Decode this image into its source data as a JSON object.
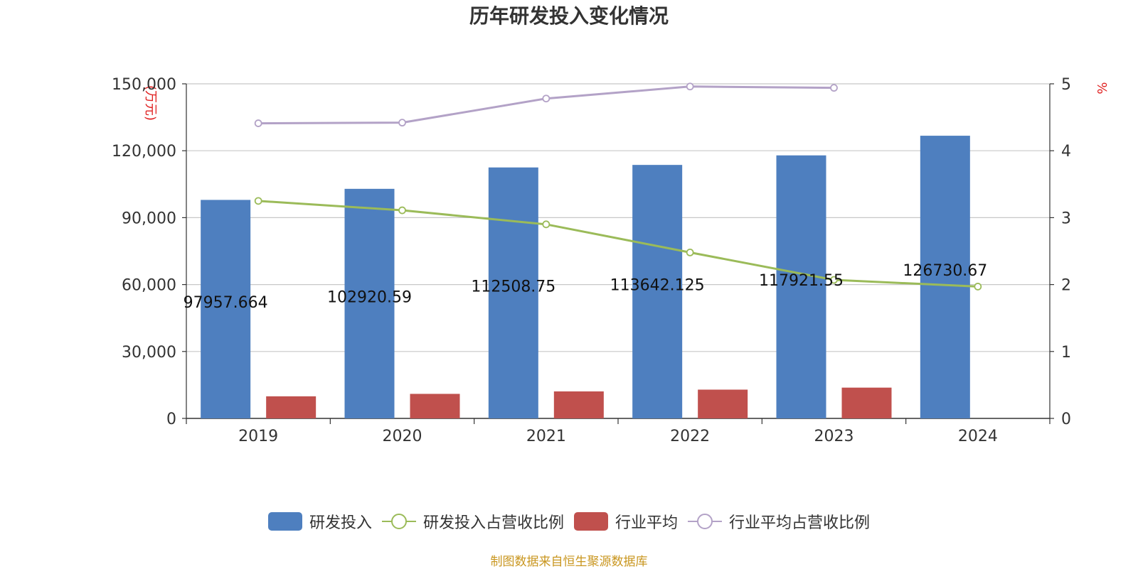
{
  "chart_data": {
    "type": "bar",
    "title": "历年研发投入变化情况",
    "categories": [
      "2019",
      "2020",
      "2021",
      "2022",
      "2023",
      "2024"
    ],
    "y_left": {
      "unit": "(万元)",
      "min": 0,
      "max": 150000,
      "ticks": [
        "0",
        "30,000",
        "60,000",
        "90,000",
        "120,000",
        "150,000"
      ]
    },
    "y_right": {
      "unit": "%",
      "min": 0,
      "max": 5,
      "ticks": [
        "0",
        "1",
        "2",
        "3",
        "4",
        "5"
      ]
    },
    "grid": true,
    "legend_position": "bottom",
    "series": [
      {
        "name": "研发投入",
        "kind": "bar",
        "axis": "left",
        "color": "#4e7fbf",
        "values": [
          97957.664,
          102920.59,
          112508.75,
          113642.125,
          117921.55,
          126730.67
        ],
        "labels": [
          "97957.664",
          "102920.59",
          "112508.75",
          "113642.125",
          "117921.55",
          "126730.67"
        ]
      },
      {
        "name": "研发投入占营收比例",
        "kind": "line",
        "axis": "right",
        "color": "#9bbb59",
        "values": [
          3.25,
          3.11,
          2.9,
          2.48,
          2.07,
          1.97
        ]
      },
      {
        "name": "行业平均",
        "kind": "bar",
        "axis": "left",
        "color": "#c0504d",
        "values": [
          9900,
          11000,
          12100,
          12900,
          13800,
          null
        ]
      },
      {
        "name": "行业平均占营收比例",
        "kind": "line",
        "axis": "right",
        "color": "#b3a2c7",
        "values": [
          4.41,
          4.42,
          4.78,
          4.96,
          4.94,
          null
        ]
      }
    ]
  },
  "legend": {
    "items": [
      {
        "label": "研发投入",
        "style": "swatch",
        "color": "#4e7fbf"
      },
      {
        "label": "研发投入占营收比例",
        "style": "line",
        "color": "#9bbb59"
      },
      {
        "label": "行业平均",
        "style": "swatch",
        "color": "#c0504d"
      },
      {
        "label": "行业平均占营收比例",
        "style": "line",
        "color": "#b3a2c7"
      }
    ]
  },
  "footer": {
    "source": "制图数据来自恒生聚源数据库"
  }
}
